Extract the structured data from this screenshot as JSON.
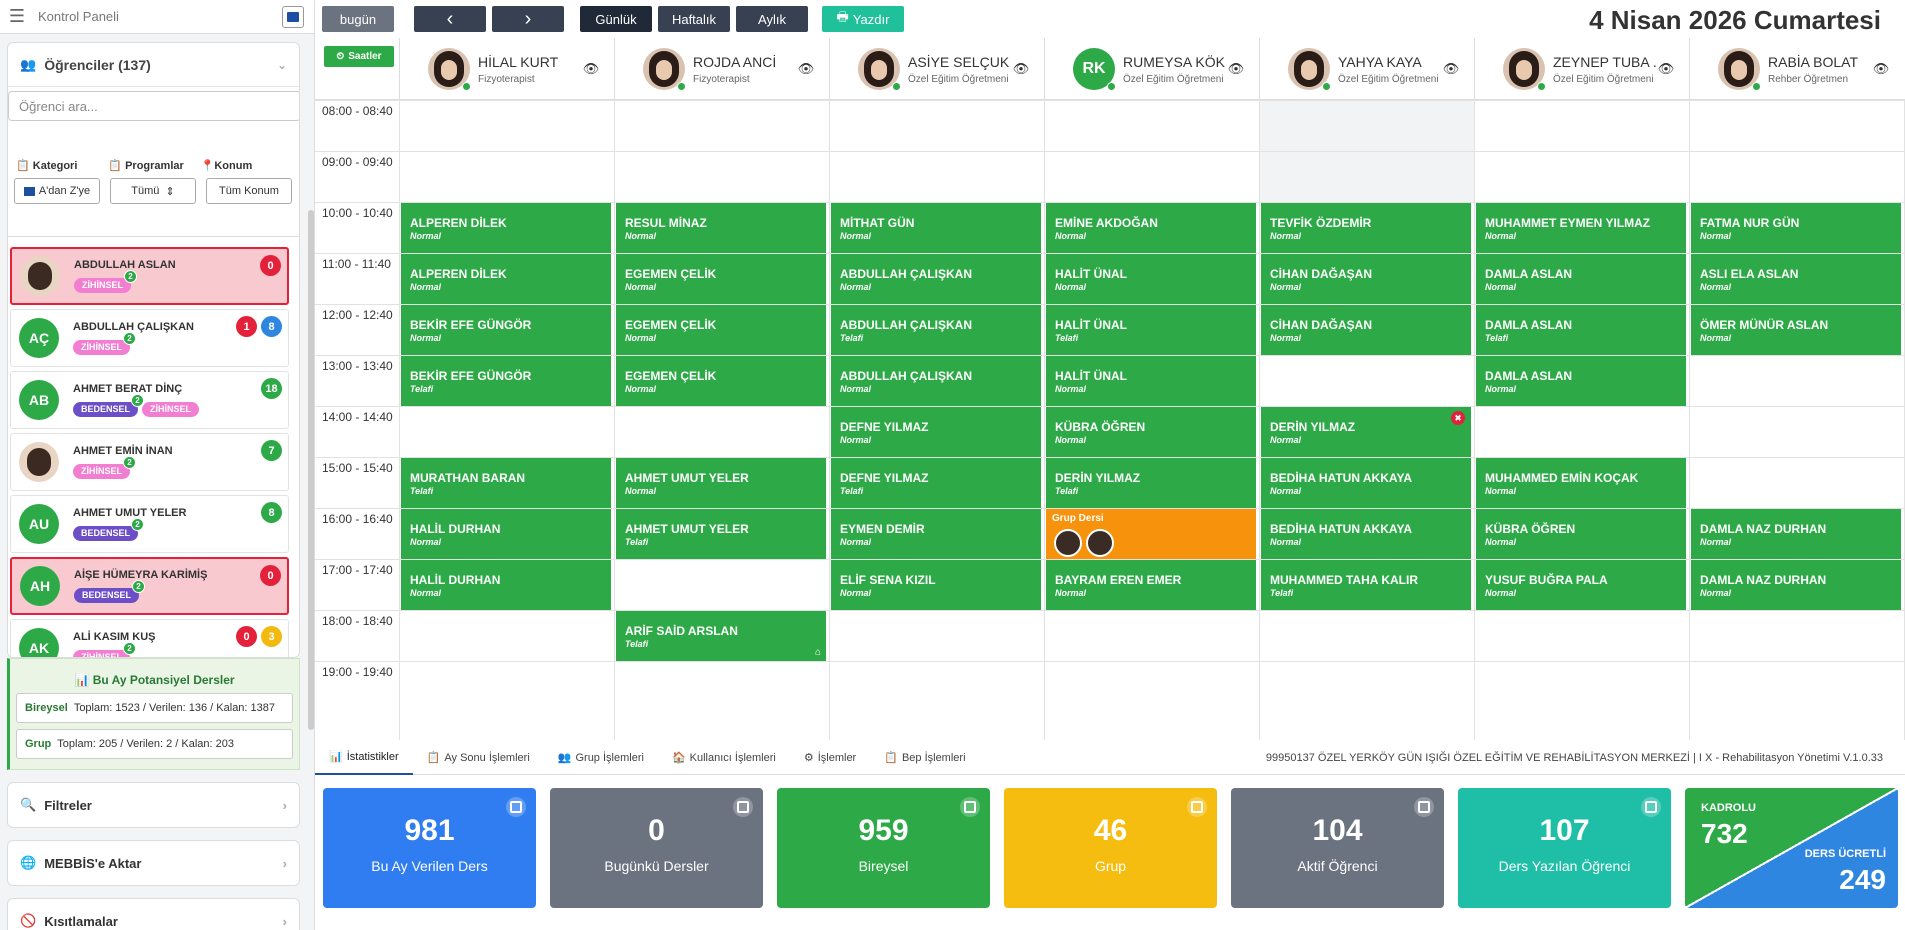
{
  "sidebar": {
    "title": "Kontrol Paneli",
    "students_header": "Öğrenciler (137)",
    "search_placeholder": "Öğrenci ara...",
    "filters": {
      "labels": [
        "Kategori",
        "Programlar",
        "Konum"
      ],
      "values": [
        "A'dan Z'ye",
        "Tümü",
        "Tüm Konum"
      ]
    },
    "students": [
      {
        "name": "ABDULLAH ASLAN",
        "initials": "",
        "photo": true,
        "alert": true,
        "tags": [
          {
            "t": "ZİHİNSEL",
            "c": "z",
            "n": "2"
          }
        ],
        "badges": [
          {
            "v": "0",
            "c": "red"
          }
        ]
      },
      {
        "name": "ABDULLAH ÇALIŞKAN",
        "initials": "AÇ",
        "photo": false,
        "alert": false,
        "tags": [
          {
            "t": "ZİHİNSEL",
            "c": "z",
            "n": "2"
          }
        ],
        "badges": [
          {
            "v": "1",
            "c": "red"
          },
          {
            "v": "8",
            "c": "blue"
          }
        ]
      },
      {
        "name": "AHMET BERAT DİNÇ",
        "initials": "AB",
        "photo": false,
        "alert": false,
        "tags": [
          {
            "t": "BEDENSEL",
            "c": "b",
            "n": "2"
          },
          {
            "t": "ZİHİNSEL",
            "c": "z",
            "n": ""
          }
        ],
        "badges": [
          {
            "v": "18",
            "c": "green"
          }
        ]
      },
      {
        "name": "AHMET EMİN İNAN",
        "initials": "",
        "photo": true,
        "alert": false,
        "tags": [
          {
            "t": "ZİHİNSEL",
            "c": "z",
            "n": "2"
          }
        ],
        "badges": [
          {
            "v": "7",
            "c": "green"
          }
        ]
      },
      {
        "name": "AHMET UMUT YELER",
        "initials": "AU",
        "photo": false,
        "alert": false,
        "tags": [
          {
            "t": "BEDENSEL",
            "c": "b",
            "n": "2"
          }
        ],
        "badges": [
          {
            "v": "8",
            "c": "green"
          }
        ]
      },
      {
        "name": "AİŞE HÜMEYRA KARİMİŞ",
        "initials": "AH",
        "photo": false,
        "alert": true,
        "tags": [
          {
            "t": "BEDENSEL",
            "c": "b",
            "n": "2"
          }
        ],
        "badges": [
          {
            "v": "0",
            "c": "red"
          }
        ]
      },
      {
        "name": "ALİ KASIM KUŞ",
        "initials": "AK",
        "photo": false,
        "alert": false,
        "tags": [
          {
            "t": "ZİHİNSEL",
            "c": "z",
            "n": "2"
          }
        ],
        "badges": [
          {
            "v": "0",
            "c": "red"
          },
          {
            "v": "3",
            "c": "yel"
          }
        ]
      }
    ],
    "potential": {
      "title": "Bu Ay Potansiyel Dersler",
      "rows": [
        {
          "label": "Bireysel",
          "text": "Toplam: 1523 /  Verilen: 136 /  Kalan: 1387"
        },
        {
          "label": "Grup",
          "text": "Toplam: 205 /  Verilen: 2 /  Kalan: 203"
        }
      ]
    },
    "buttons": [
      "Filtreler",
      "MEBBİS'e Aktar",
      "Kısıtlamalar"
    ]
  },
  "toolbar": {
    "today": "bugün",
    "prev": "‹",
    "next": "›",
    "views": [
      "Günlük",
      "Haftalık",
      "Aylık"
    ],
    "print": "Yazdır"
  },
  "date_title": "4 Nisan 2026 Cumartesi",
  "schedule": {
    "hours_button": "Saatler",
    "time_slots": [
      "08:00 - 08:40",
      "09:00 - 09:40",
      "10:00 - 10:40",
      "11:00 - 11:40",
      "12:00 - 12:40",
      "13:00 - 13:40",
      "14:00 - 14:40",
      "15:00 - 15:40",
      "16:00 - 16:40",
      "17:00 - 17:40",
      "18:00 - 18:40",
      "19:00 - 19:40"
    ],
    "teachers": [
      {
        "name": "HİLAL KURT",
        "role": "Fizyoterapist",
        "initials": ""
      },
      {
        "name": "ROJDA ANCİ",
        "role": "Fizyoterapist",
        "initials": ""
      },
      {
        "name": "ASİYE SELÇUK",
        "role": "Özel Eğitim Öğretmeni",
        "initials": ""
      },
      {
        "name": "RUMEYSA KÖK",
        "role": "Özel Eğitim Öğretmeni",
        "initials": "RK"
      },
      {
        "name": "YAHYA KAYA",
        "role": "Özel Eğitim Öğretmeni",
        "initials": ""
      },
      {
        "name": "ZEYNEP TUBA ...",
        "role": "Özel Eğitim Öğretmeni",
        "initials": ""
      },
      {
        "name": "RABİA BOLAT",
        "role": "Rehber Öğretmen",
        "initials": ""
      }
    ],
    "lessons": [
      {
        "col": 0,
        "slot": 2,
        "name": "ALPEREN DİLEK",
        "type": "Normal"
      },
      {
        "col": 0,
        "slot": 3,
        "name": "ALPEREN DİLEK",
        "type": "Normal"
      },
      {
        "col": 0,
        "slot": 4,
        "name": "BEKİR EFE GÜNGÖR",
        "type": "Normal"
      },
      {
        "col": 0,
        "slot": 5,
        "name": "BEKİR EFE GÜNGÖR",
        "type": "Telafi"
      },
      {
        "col": 0,
        "slot": 7,
        "name": "MURATHAN BARAN",
        "type": "Telafi"
      },
      {
        "col": 0,
        "slot": 8,
        "name": "HALİL DURHAN",
        "type": "Normal"
      },
      {
        "col": 0,
        "slot": 9,
        "name": "HALİL DURHAN",
        "type": "Normal"
      },
      {
        "col": 1,
        "slot": 2,
        "name": "RESUL MİNAZ",
        "type": "Normal"
      },
      {
        "col": 1,
        "slot": 3,
        "name": "EGEMEN ÇELİK",
        "type": "Normal"
      },
      {
        "col": 1,
        "slot": 4,
        "name": "EGEMEN ÇELİK",
        "type": "Normal"
      },
      {
        "col": 1,
        "slot": 5,
        "name": "EGEMEN ÇELİK",
        "type": "Normal"
      },
      {
        "col": 1,
        "slot": 7,
        "name": "AHMET UMUT YELER",
        "type": "Normal"
      },
      {
        "col": 1,
        "slot": 8,
        "name": "AHMET UMUT YELER",
        "type": "Telafi"
      },
      {
        "col": 1,
        "slot": 10,
        "name": "ARİF SAİD ARSLAN",
        "type": "Telafi",
        "home": true
      },
      {
        "col": 2,
        "slot": 2,
        "name": "MİTHAT GÜN",
        "type": "Normal"
      },
      {
        "col": 2,
        "slot": 3,
        "name": "ABDULLAH ÇALIŞKAN",
        "type": "Normal"
      },
      {
        "col": 2,
        "slot": 4,
        "name": "ABDULLAH ÇALIŞKAN",
        "type": "Telafi"
      },
      {
        "col": 2,
        "slot": 5,
        "name": "ABDULLAH ÇALIŞKAN",
        "type": "Normal"
      },
      {
        "col": 2,
        "slot": 6,
        "name": "DEFNE YILMAZ",
        "type": "Normal"
      },
      {
        "col": 2,
        "slot": 7,
        "name": "DEFNE YILMAZ",
        "type": "Telafi"
      },
      {
        "col": 2,
        "slot": 8,
        "name": "EYMEN DEMİR",
        "type": "Normal"
      },
      {
        "col": 2,
        "slot": 9,
        "name": "ELİF SENA KIZIL",
        "type": "Normal"
      },
      {
        "col": 3,
        "slot": 2,
        "name": "EMİNE AKDOĞAN",
        "type": "Normal"
      },
      {
        "col": 3,
        "slot": 3,
        "name": "HALİT ÜNAL",
        "type": "Normal"
      },
      {
        "col": 3,
        "slot": 4,
        "name": "HALİT ÜNAL",
        "type": "Telafi"
      },
      {
        "col": 3,
        "slot": 5,
        "name": "HALİT ÜNAL",
        "type": "Normal"
      },
      {
        "col": 3,
        "slot": 6,
        "name": "KÜBRA ÖĞREN",
        "type": "Normal"
      },
      {
        "col": 3,
        "slot": 7,
        "name": "DERİN YILMAZ",
        "type": "Telafi"
      },
      {
        "col": 3,
        "slot": 8,
        "name": "Grup Dersi",
        "type": "",
        "group": true
      },
      {
        "col": 3,
        "slot": 9,
        "name": "BAYRAM EREN EMER",
        "type": "Normal"
      },
      {
        "col": 4,
        "slot": 2,
        "name": "TEVFİK ÖZDEMİR",
        "type": "Normal"
      },
      {
        "col": 4,
        "slot": 3,
        "name": "CİHAN DAĞAŞAN",
        "type": "Normal"
      },
      {
        "col": 4,
        "slot": 4,
        "name": "CİHAN DAĞAŞAN",
        "type": "Normal"
      },
      {
        "col": 4,
        "slot": 6,
        "name": "DERİN YILMAZ",
        "type": "Normal",
        "close": true
      },
      {
        "col": 4,
        "slot": 7,
        "name": "BEDİHA HATUN AKKAYA",
        "type": "Normal"
      },
      {
        "col": 4,
        "slot": 8,
        "name": "BEDİHA HATUN AKKAYA",
        "type": "Normal"
      },
      {
        "col": 4,
        "slot": 9,
        "name": "MUHAMMED TAHA KALIR",
        "type": "Telafi"
      },
      {
        "col": 5,
        "slot": 2,
        "name": "MUHAMMET EYMEN YILMAZ",
        "type": "Normal"
      },
      {
        "col": 5,
        "slot": 3,
        "name": "DAMLA ASLAN",
        "type": "Normal"
      },
      {
        "col": 5,
        "slot": 4,
        "name": "DAMLA ASLAN",
        "type": "Telafi"
      },
      {
        "col": 5,
        "slot": 5,
        "name": "DAMLA ASLAN",
        "type": "Normal"
      },
      {
        "col": 5,
        "slot": 7,
        "name": "MUHAMMED EMİN KOÇAK",
        "type": "Normal"
      },
      {
        "col": 5,
        "slot": 8,
        "name": "KÜBRA ÖĞREN",
        "type": "Normal"
      },
      {
        "col": 5,
        "slot": 9,
        "name": "YUSUF BUĞRA PALA",
        "type": "Normal"
      },
      {
        "col": 6,
        "slot": 2,
        "name": "FATMA NUR GÜN",
        "type": "Normal"
      },
      {
        "col": 6,
        "slot": 3,
        "name": "ASLI ELA ASLAN",
        "type": "Normal"
      },
      {
        "col": 6,
        "slot": 4,
        "name": "ÖMER MÜNÜR ASLAN",
        "type": "Normal"
      },
      {
        "col": 6,
        "slot": 8,
        "name": "DAMLA NAZ DURHAN",
        "type": "Normal"
      },
      {
        "col": 6,
        "slot": 9,
        "name": "DAMLA NAZ DURHAN",
        "type": "Normal"
      }
    ]
  },
  "bottom_tabs": [
    "İstatistikler",
    "Ay Sonu İşlemleri",
    "Grup İşlemleri",
    "Kullanıcı İşlemleri",
    "İşlemler",
    "Bep İşlemleri"
  ],
  "footer_info": "99950137 ÖZEL YERKÖY GÜN IŞIĞI ÖZEL EĞİTİM VE REHABİLİTASYON MERKEZİ | I X - Rehabilitasyon Yönetimi V.1.0.33",
  "stats": [
    {
      "value": "981",
      "label": "Bu Ay Verilen Ders",
      "color": "#2f7df0"
    },
    {
      "value": "0",
      "label": "Bugünkü Dersler",
      "color": "#6b7280"
    },
    {
      "value": "959",
      "label": "Bireysel",
      "color": "#2daa47"
    },
    {
      "value": "46",
      "label": "Grup",
      "color": "#f5bd0f"
    },
    {
      "value": "104",
      "label": "Aktif Öğrenci",
      "color": "#6b7280"
    },
    {
      "value": "107",
      "label": "Ders Yazılan Öğrenci",
      "color": "#1fbea6"
    }
  ],
  "staff_card": {
    "k1": "KADROLU",
    "v1": "732",
    "k2": "DERS ÜCRETLİ",
    "v2": "249"
  }
}
